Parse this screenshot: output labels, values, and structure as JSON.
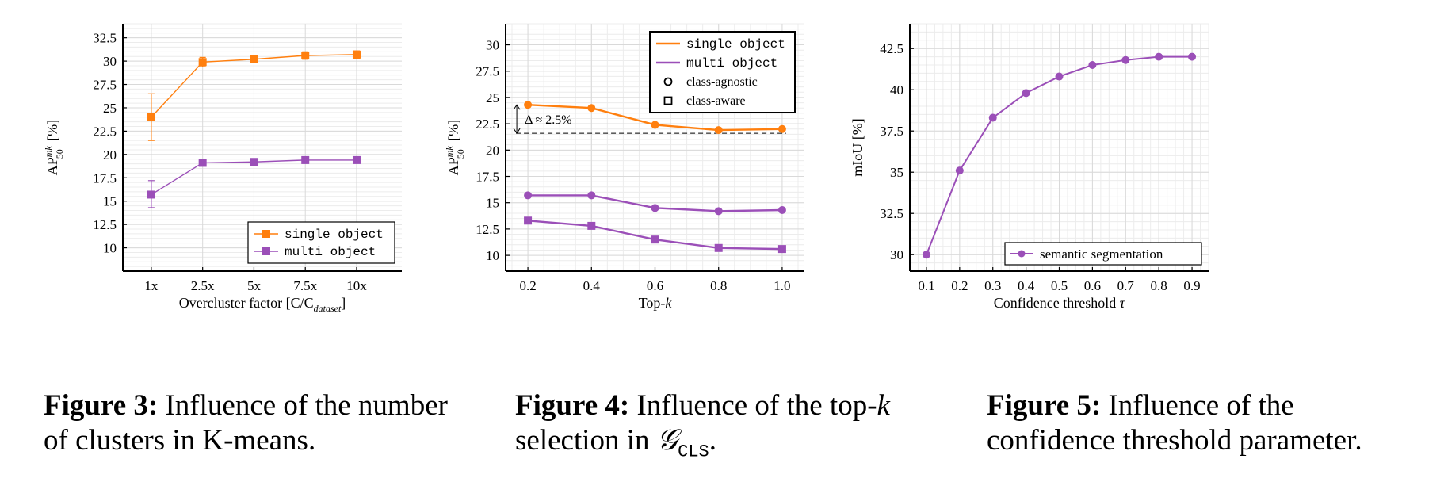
{
  "colors": {
    "orange": "#ff7f0e",
    "purple": "#9b4fb8",
    "grid": "#d9d9d9"
  },
  "chart_data": [
    {
      "type": "line",
      "id": "fig3",
      "categories": [
        "1x",
        "2.5x",
        "5x",
        "7.5x",
        "10x"
      ],
      "xlabel": "Overcluster factor [C/C",
      "xlabel_sub": "dataset",
      "xlabel_end": "]",
      "ylabel": "AP",
      "ylabel_sup": "mk",
      "ylabel_sub": "50",
      "ylabel_unit": "[%]",
      "ylim": [
        7.5,
        34.0
      ],
      "yticks": [
        10,
        12.5,
        15,
        17.5,
        20,
        22.5,
        25,
        27.5,
        30,
        32.5
      ],
      "ytick_labels": [
        "10",
        "12.5",
        "15",
        "17.5",
        "20",
        "22.5",
        "25",
        "27.5",
        "30",
        "32.5"
      ],
      "legend": "bottom-right",
      "series": [
        {
          "name": "single object",
          "color": "orange",
          "marker": "square",
          "values": [
            24.0,
            29.9,
            30.2,
            30.6,
            30.7
          ],
          "errors": [
            [
              21.5,
              26.5
            ],
            [
              29.4,
              30.4
            ],
            [
              29.9,
              30.5
            ],
            [
              30.2,
              31.0
            ],
            [
              30.3,
              31.1
            ]
          ]
        },
        {
          "name": "multi object",
          "color": "purple",
          "marker": "square",
          "values": [
            15.7,
            19.1,
            19.2,
            19.4,
            19.4
          ],
          "errors": [
            [
              14.3,
              17.2
            ],
            null,
            null,
            null,
            null
          ]
        }
      ]
    },
    {
      "type": "line",
      "id": "fig4",
      "x": [
        0.2,
        0.4,
        0.6,
        0.8,
        1.0
      ],
      "xtick_labels": [
        "0.2",
        "0.4",
        "0.6",
        "0.8",
        "1.0"
      ],
      "xlim": [
        0.13,
        1.07
      ],
      "xlabel": "Top-",
      "xlabel_var": "k",
      "ylabel": "AP",
      "ylabel_sup": "mk",
      "ylabel_sub": "50",
      "ylabel_unit": "[%]",
      "ylim": [
        8.5,
        32.0
      ],
      "yticks": [
        10,
        12.5,
        15,
        17.5,
        20,
        22.5,
        25,
        27.5,
        30
      ],
      "ytick_labels": [
        "10",
        "12.5",
        "15",
        "17.5",
        "20",
        "22.5",
        "25",
        "27.5",
        "30"
      ],
      "legend": "top-right",
      "legend_entries": [
        {
          "label": "single object",
          "kind": "line",
          "color": "orange"
        },
        {
          "label": "multi object",
          "kind": "line",
          "color": "purple"
        },
        {
          "label": "class-agnostic",
          "kind": "circle"
        },
        {
          "label": "class-aware",
          "kind": "square"
        }
      ],
      "series": [
        {
          "name": "single object class-agnostic",
          "color": "orange",
          "marker": "circle",
          "values": [
            24.3,
            24.0,
            22.4,
            21.9,
            22.0
          ]
        },
        {
          "name": "multi object class-agnostic",
          "color": "purple",
          "marker": "circle",
          "values": [
            15.7,
            15.7,
            14.5,
            14.2,
            14.3
          ]
        },
        {
          "name": "multi object class-aware",
          "color": "purple",
          "marker": "square",
          "values": [
            13.3,
            12.8,
            11.5,
            10.7,
            10.6
          ]
        }
      ],
      "annotation": {
        "text": "Δ ≈ 2.5%",
        "from": 24.3,
        "to": 21.6,
        "baseline": 21.6
      }
    },
    {
      "type": "line",
      "id": "fig5",
      "x": [
        0.1,
        0.2,
        0.3,
        0.4,
        0.5,
        0.6,
        0.7,
        0.8,
        0.9
      ],
      "xtick_labels": [
        "0.1",
        "0.2",
        "0.3",
        "0.4",
        "0.5",
        "0.6",
        "0.7",
        "0.8",
        "0.9"
      ],
      "xlim": [
        0.05,
        0.95
      ],
      "xlabel": "Confidence threshold",
      "xlabel_var": "τ",
      "ylabel": "mIoU [%]",
      "ylim": [
        29.0,
        44.0
      ],
      "yticks": [
        30,
        32.5,
        35,
        37.5,
        40,
        42.5
      ],
      "ytick_labels": [
        "30",
        "32.5",
        "35",
        "37.5",
        "40",
        "42.5"
      ],
      "legend": "bottom-right",
      "series": [
        {
          "name": "semantic segmentation",
          "color": "purple",
          "marker": "circle",
          "values": [
            30.0,
            35.1,
            38.3,
            39.8,
            40.8,
            41.5,
            41.8,
            42.0,
            42.0
          ]
        }
      ]
    }
  ],
  "captions": [
    {
      "label": "Figure 3:",
      "text": "Influence of the number of clusters in K-means."
    },
    {
      "label": "Figure 4:",
      "text_a": "Influence of the top-",
      "text_var": "k",
      "text_b": "selection in",
      "text_g": "𝒢",
      "text_sub": "CLS",
      "text_end": "."
    },
    {
      "label": "Figure 5:",
      "text": "Influence of the confidence threshold parameter."
    }
  ]
}
